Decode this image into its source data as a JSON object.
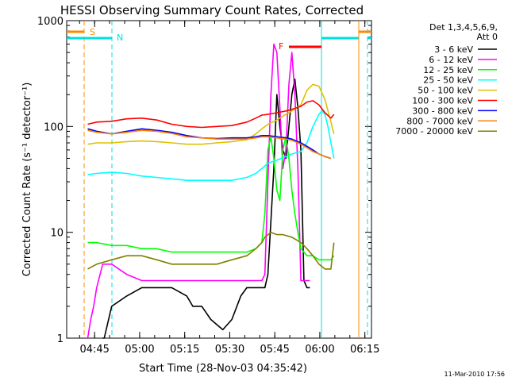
{
  "chart_data": {
    "type": "line",
    "title": "HESSI Observing Summary Count Rates, Corrected",
    "xlabel": "Start Time (28-Nov-03 04:35:42)",
    "ylabel": "Corrected Count Rate (s⁻¹ detector⁻¹)",
    "xlim_minutes": [
      0,
      101.5
    ],
    "ylim": [
      1,
      1000
    ],
    "yscale": "log",
    "x_ticks": [
      "04:45",
      "05:00",
      "05:15",
      "05:30",
      "05:45",
      "06:00",
      "06:15"
    ],
    "y_ticks": [
      "1",
      "10",
      "100",
      "1000"
    ],
    "legend_header": [
      "Det 1,3,4,5,6,9,",
      "Att 0"
    ],
    "footer": "11-Mar-2010 17:56",
    "markers": {
      "s_label": "S",
      "n_label": "N",
      "f_label": "F",
      "s_color": "#ff8800",
      "n_color": "#00e0e0",
      "f_color": "#ff0000"
    },
    "series": [
      {
        "name": "3 - 6 keV",
        "color": "#000000",
        "x": [
          12,
          12.5,
          15,
          20,
          25,
          30,
          35,
          40,
          42,
          45,
          48,
          52,
          55,
          58,
          60,
          63,
          66,
          67,
          69,
          70,
          71,
          72,
          73,
          74,
          75,
          76,
          77,
          78,
          79,
          80,
          81
        ],
        "y": [
          1,
          1,
          2,
          2.5,
          3,
          3,
          3,
          2.5,
          2,
          2,
          1.5,
          1.2,
          1.5,
          2.5,
          3,
          3,
          3,
          4,
          40,
          200,
          100,
          60,
          50,
          100,
          200,
          280,
          150,
          60,
          3.5,
          3,
          3
        ]
      },
      {
        "name": "6 - 12 keV",
        "color": "#ff00ff",
        "x": [
          7,
          8,
          9,
          10,
          12,
          15,
          20,
          25,
          30,
          35,
          40,
          45,
          50,
          55,
          60,
          65,
          66,
          67,
          68,
          69,
          70,
          71,
          72,
          73,
          74,
          75,
          76,
          77,
          78,
          79,
          80,
          81
        ],
        "y": [
          1,
          1.5,
          2,
          3,
          5,
          5,
          4,
          3.5,
          3.5,
          3.5,
          3.5,
          3.5,
          3.5,
          3.5,
          3.5,
          3.5,
          4,
          30,
          200,
          600,
          500,
          150,
          40,
          60,
          250,
          500,
          200,
          40,
          3.5,
          3.5,
          3.5,
          3.5
        ]
      },
      {
        "name": "12 - 25 keV",
        "color": "#00ff00",
        "x": [
          7,
          10,
          15,
          20,
          25,
          30,
          35,
          40,
          45,
          50,
          55,
          60,
          63,
          65,
          66,
          67,
          68,
          69,
          70,
          71,
          72,
          73,
          74,
          75,
          76,
          77,
          78,
          80,
          82,
          84,
          86,
          88,
          89
        ],
        "y": [
          8,
          8,
          7.5,
          7.5,
          7,
          7,
          6.5,
          6.5,
          6.5,
          6.5,
          6.5,
          6.5,
          7,
          8,
          15,
          60,
          80,
          50,
          25,
          20,
          60,
          80,
          50,
          25,
          15,
          10,
          7,
          6,
          6,
          5.5,
          5.5,
          5.5,
          6
        ]
      },
      {
        "name": "25 - 50 keV",
        "color": "#00ffff",
        "x": [
          7,
          10,
          15,
          20,
          25,
          30,
          35,
          40,
          45,
          50,
          55,
          60,
          63,
          65,
          67,
          70,
          73,
          75,
          78,
          80,
          82,
          84,
          85,
          86,
          87,
          88,
          89
        ],
        "y": [
          35,
          36,
          37,
          36,
          34,
          33,
          32,
          31,
          31,
          31,
          31,
          33,
          36,
          40,
          45,
          48,
          52,
          55,
          58,
          70,
          100,
          130,
          140,
          130,
          100,
          70,
          50
        ]
      },
      {
        "name": "50 - 100 keV",
        "color": "#e0c000",
        "x": [
          7,
          10,
          15,
          20,
          25,
          30,
          35,
          40,
          45,
          50,
          55,
          60,
          63,
          65,
          67,
          70,
          73,
          75,
          78,
          80,
          82,
          84,
          86,
          88,
          89
        ],
        "y": [
          68,
          70,
          70,
          72,
          73,
          72,
          70,
          68,
          68,
          70,
          72,
          75,
          85,
          95,
          105,
          115,
          130,
          140,
          160,
          220,
          250,
          240,
          180,
          110,
          85
        ]
      },
      {
        "name": "100 - 300 keV",
        "color": "#ff0000",
        "x": [
          7,
          10,
          15,
          20,
          25,
          30,
          35,
          40,
          45,
          50,
          55,
          60,
          63,
          65,
          67,
          70,
          73,
          75,
          78,
          80,
          82,
          84,
          86,
          88,
          89
        ],
        "y": [
          105,
          110,
          112,
          118,
          120,
          115,
          105,
          100,
          98,
          100,
          102,
          110,
          120,
          128,
          130,
          135,
          140,
          145,
          155,
          170,
          175,
          160,
          135,
          120,
          130
        ]
      },
      {
        "name": "300 - 800 keV",
        "color": "#0000ff",
        "x": [
          7,
          10,
          15,
          20,
          25,
          30,
          35,
          40,
          45,
          50,
          55,
          60,
          63,
          65,
          67,
          70,
          73,
          75,
          78,
          80,
          82,
          84,
          86,
          88
        ],
        "y": [
          95,
          90,
          85,
          90,
          95,
          92,
          88,
          82,
          78,
          77,
          78,
          78,
          80,
          82,
          82,
          80,
          78,
          76,
          70,
          65,
          60,
          55,
          52,
          50
        ]
      },
      {
        "name": "800 - 7000 keV",
        "color": "#ff8000",
        "x": [
          7,
          10,
          15,
          20,
          25,
          30,
          35,
          40,
          45,
          50,
          55,
          60,
          63,
          65,
          67,
          70,
          73,
          75,
          78,
          80,
          82,
          84,
          86,
          88
        ],
        "y": [
          92,
          88,
          85,
          88,
          92,
          90,
          86,
          80,
          78,
          76,
          76,
          76,
          78,
          80,
          80,
          78,
          76,
          74,
          68,
          63,
          58,
          55,
          52,
          50
        ]
      },
      {
        "name": "7000 - 20000 keV",
        "color": "#808000",
        "x": [
          7,
          10,
          15,
          20,
          25,
          30,
          35,
          40,
          45,
          50,
          55,
          60,
          63,
          65,
          66,
          68,
          70,
          72,
          75,
          78,
          80,
          82,
          84,
          86,
          88,
          89
        ],
        "y": [
          4.5,
          5,
          5.5,
          6,
          6,
          5.5,
          5,
          5,
          5,
          5,
          5.5,
          6,
          7,
          8,
          9,
          10,
          9.5,
          9.5,
          9,
          8,
          7,
          6,
          5,
          4.5,
          4.5,
          8
        ]
      }
    ]
  }
}
